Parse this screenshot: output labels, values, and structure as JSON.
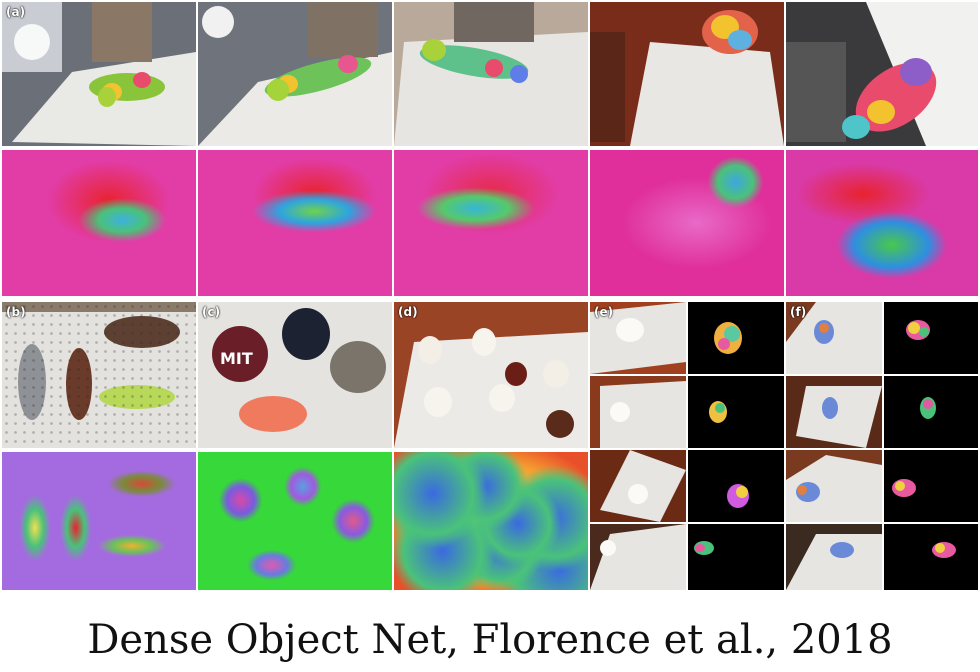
{
  "figure": {
    "labels": {
      "a": "(a)",
      "b": "(b)",
      "c": "(c)",
      "d": "(d)",
      "e": "(e)",
      "f": "(f)"
    },
    "caption": "Dense Object Net, Florence et al., 2018"
  }
}
